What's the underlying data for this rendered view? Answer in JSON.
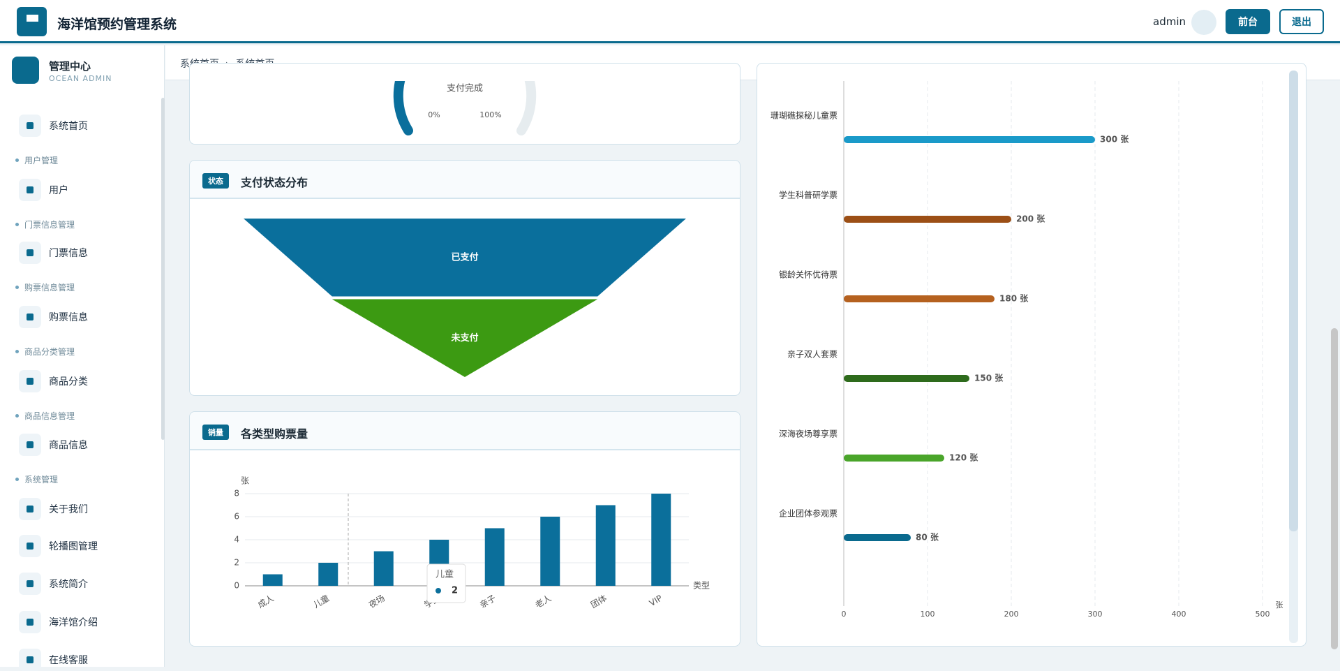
{
  "header": {
    "title": "海洋馆预约管理系统",
    "user": "admin",
    "buttons": [
      "前台",
      "退出"
    ]
  },
  "sidebar": {
    "title": "管理中心",
    "subtitle": "OCEAN ADMIN",
    "menu": [
      {
        "label": "系统首页"
      },
      {
        "group": "用户管理"
      },
      {
        "label": "用户"
      },
      {
        "group": "门票信息管理"
      },
      {
        "label": "门票信息"
      },
      {
        "group": "购票信息管理"
      },
      {
        "label": "购票信息"
      },
      {
        "group": "商品分类管理"
      },
      {
        "label": "商品分类"
      },
      {
        "group": "商品信息管理"
      },
      {
        "label": "商品信息"
      },
      {
        "group": "系统管理"
      },
      {
        "label": "关于我们"
      },
      {
        "label": "轮播图管理"
      },
      {
        "label": "系统简介"
      },
      {
        "label": "海洋馆介绍"
      },
      {
        "label": "在线客服"
      }
    ]
  },
  "breadcrumb": [
    "系统首页",
    "系统首页"
  ],
  "gauge": {
    "label": "支付完成",
    "min_label": "0%",
    "max_label": "100%"
  },
  "chart_data": [
    {
      "type": "funnel",
      "badge": "状态",
      "title": "支付状态分布",
      "categories": [
        "已支付",
        "未支付"
      ],
      "values": [
        5,
        3
      ],
      "colors": [
        "#0a6f9c",
        "#3c9a12"
      ]
    },
    {
      "type": "bar",
      "badge": "销量",
      "title": "各类型购票量",
      "y_label": "张",
      "x_label": "类型",
      "categories": [
        "成人",
        "儿童",
        "夜场",
        "学生",
        "亲子",
        "老人",
        "团体",
        "VIP"
      ],
      "values": [
        1,
        2,
        3,
        4,
        5,
        6,
        7,
        8
      ],
      "color": "#0b6f9b",
      "ylim": [
        0,
        8
      ],
      "yticks": [
        0,
        2,
        4,
        6,
        8
      ],
      "grid": true
    },
    {
      "type": "hbar",
      "x_label": "张",
      "categories": [
        "珊瑚礁探秘儿童票",
        "学生科普研学票",
        "银龄关怀优待票",
        "亲子双人套票",
        "深海夜场尊享票",
        "企业团体参观票"
      ],
      "values": [
        300,
        200,
        180,
        150,
        120,
        80
      ],
      "value_labels": [
        "300 张",
        "200 张",
        "180 张",
        "150 张",
        "120 张",
        "80 张"
      ],
      "colors": [
        "#1a9ac9",
        "#9c4f16",
        "#b5611f",
        "#2e6b1c",
        "#4aa52a",
        "#0a6a8e"
      ],
      "xlim": [
        0,
        500
      ],
      "xticks": [
        0,
        100,
        200,
        300,
        400,
        500
      ],
      "grid": true
    }
  ]
}
